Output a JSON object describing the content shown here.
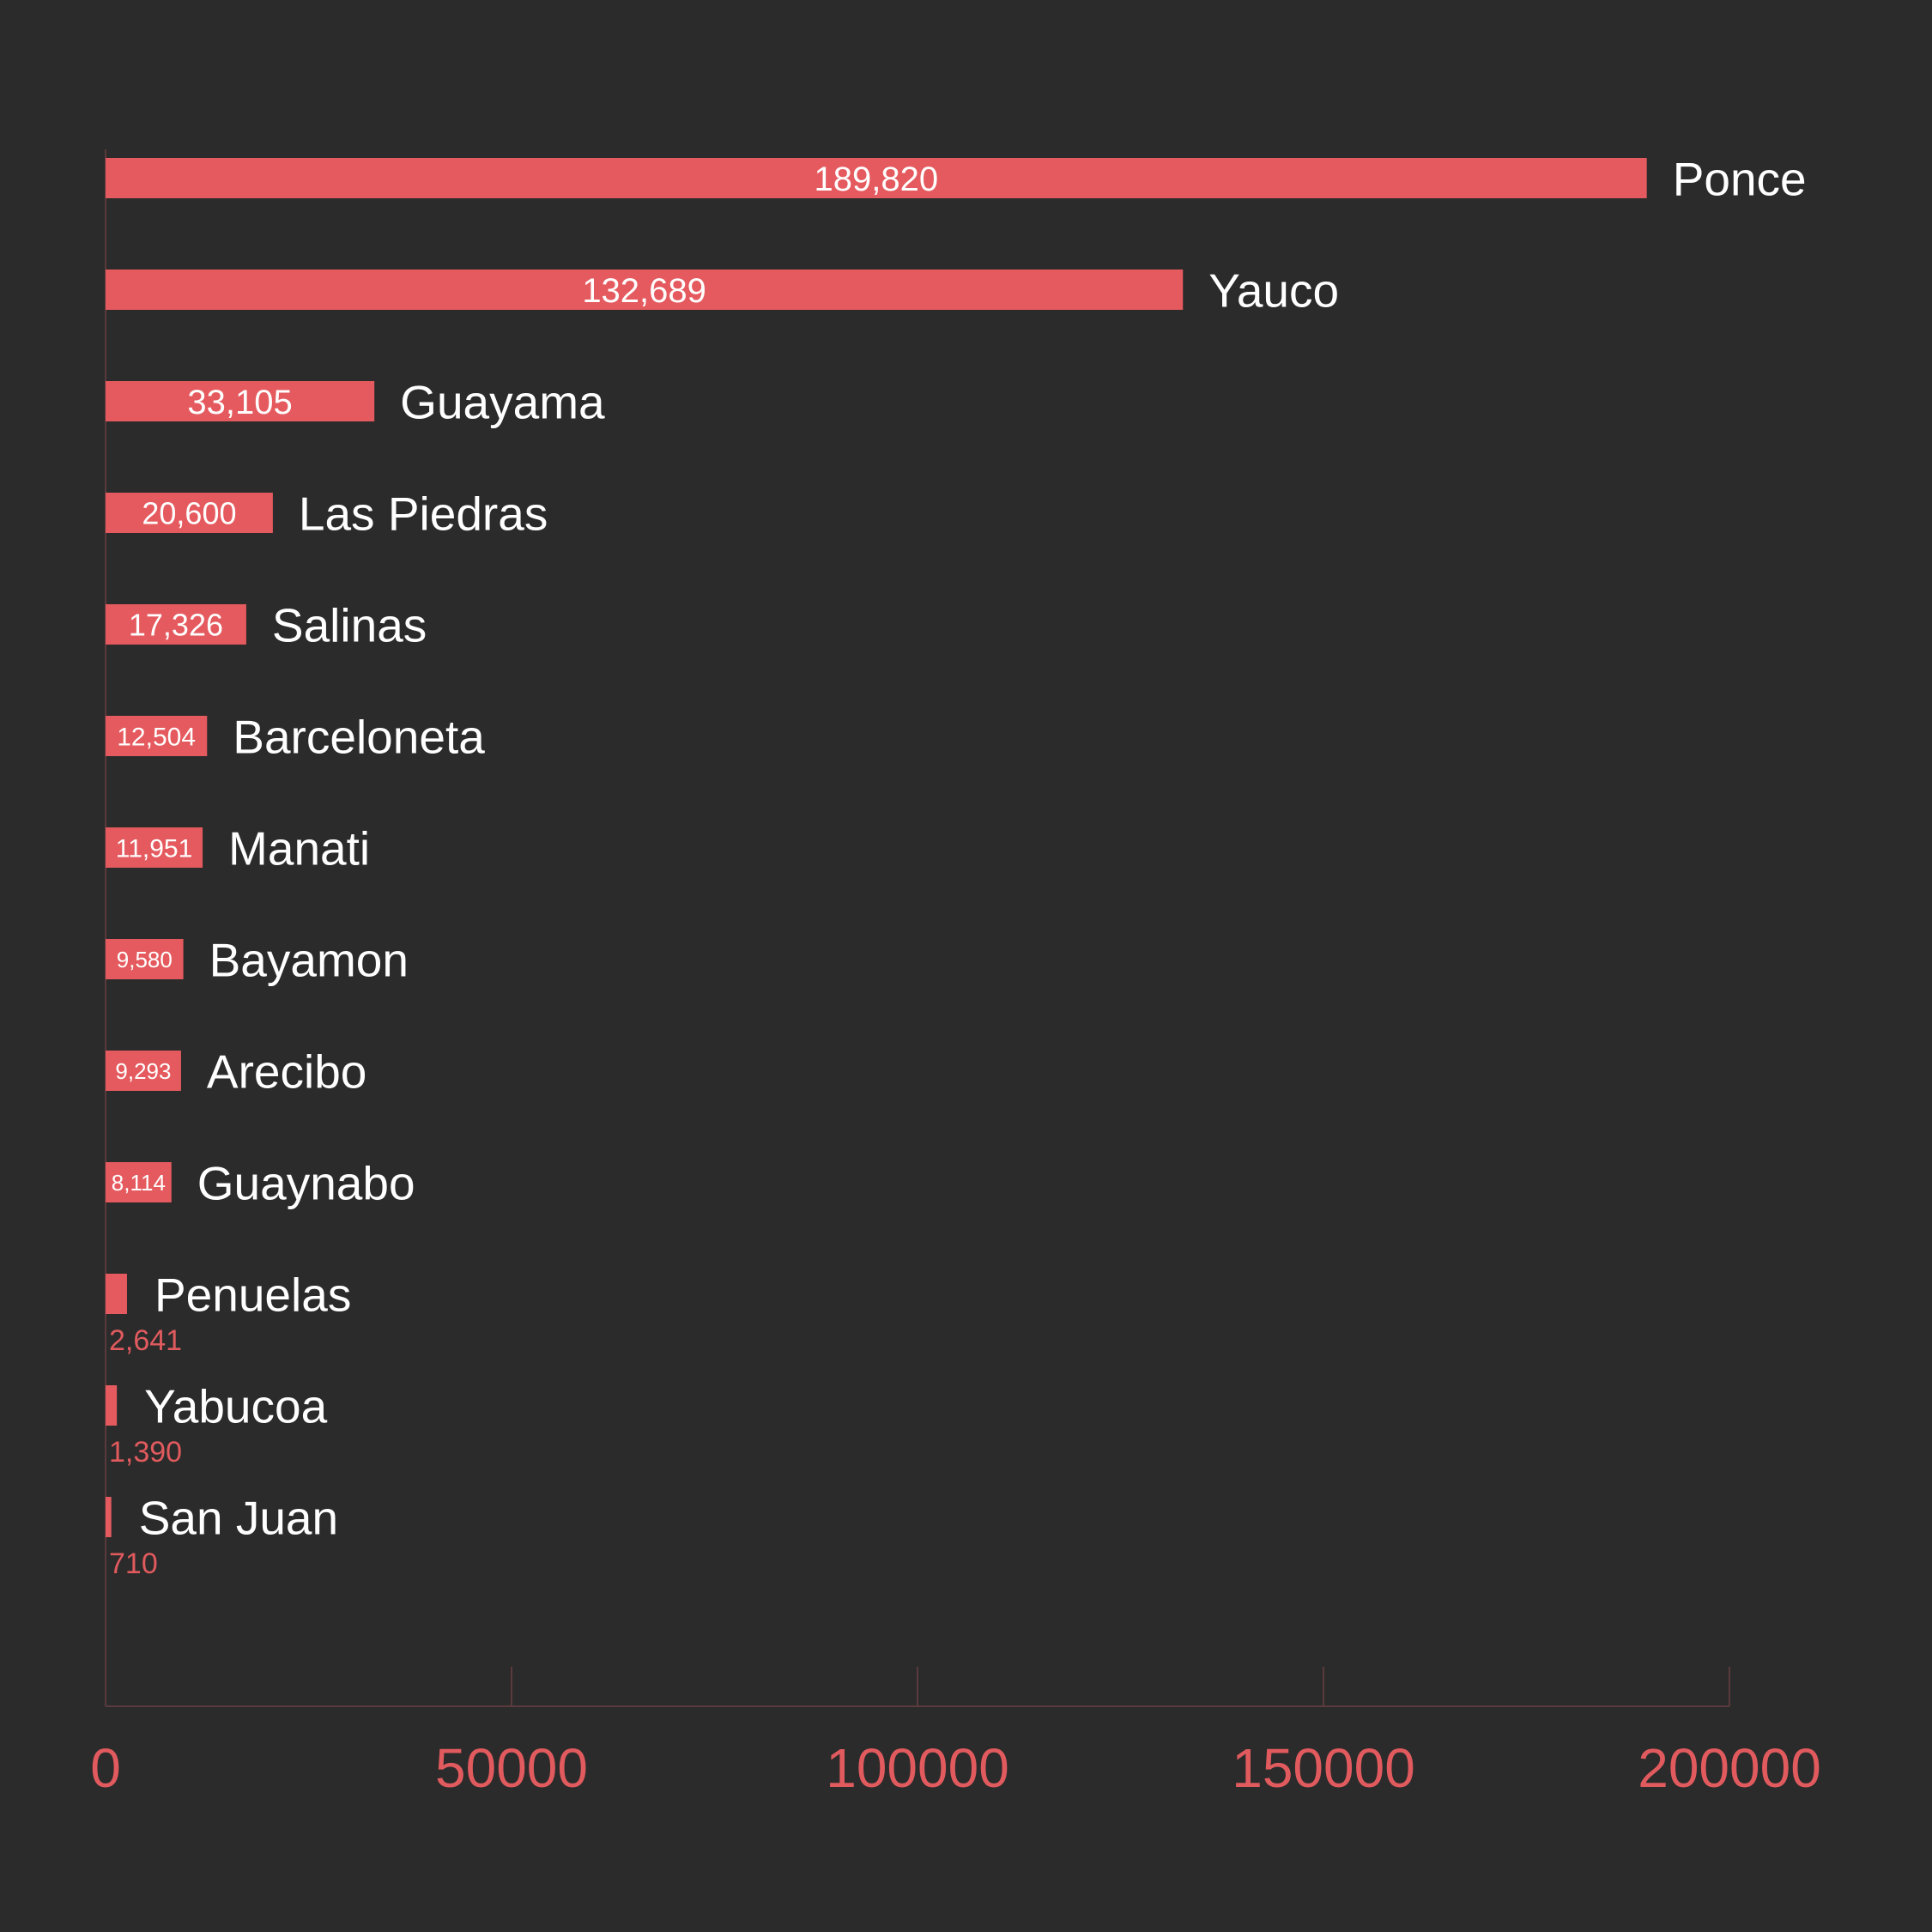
{
  "colors": {
    "background": "#2b2b2b",
    "bar": "#e55a5e",
    "axis": "#5a3a3c",
    "category_text": "#ffffff",
    "tick_text": "#e05a5e"
  },
  "chart_data": {
    "type": "bar",
    "orientation": "horizontal",
    "categories": [
      "Ponce",
      "Yauco",
      "Guayama",
      "Las Piedras",
      "Salinas",
      "Barceloneta",
      "Manati",
      "Bayamon",
      "Arecibo",
      "Guaynabo",
      "Penuelas",
      "Yabucoa",
      "San Juan"
    ],
    "values": [
      189820,
      132689,
      33105,
      20600,
      17326,
      12504,
      11951,
      9580,
      9293,
      8114,
      2641,
      1390,
      710
    ],
    "value_labels": [
      "189,820",
      "132,689",
      "33,105",
      "20,600",
      "17,326",
      "12,504",
      "11,951",
      "9,580",
      "9,293",
      "8,114",
      "2,641",
      "1,390",
      "710"
    ],
    "xlim": [
      0,
      200000
    ],
    "x_ticks": [
      0,
      50000,
      100000,
      150000,
      200000
    ],
    "x_tick_labels": [
      "0",
      "50000",
      "100000",
      "150000",
      "200000"
    ],
    "title": "",
    "xlabel": "",
    "ylabel": "",
    "grid": false,
    "legend": "none"
  }
}
